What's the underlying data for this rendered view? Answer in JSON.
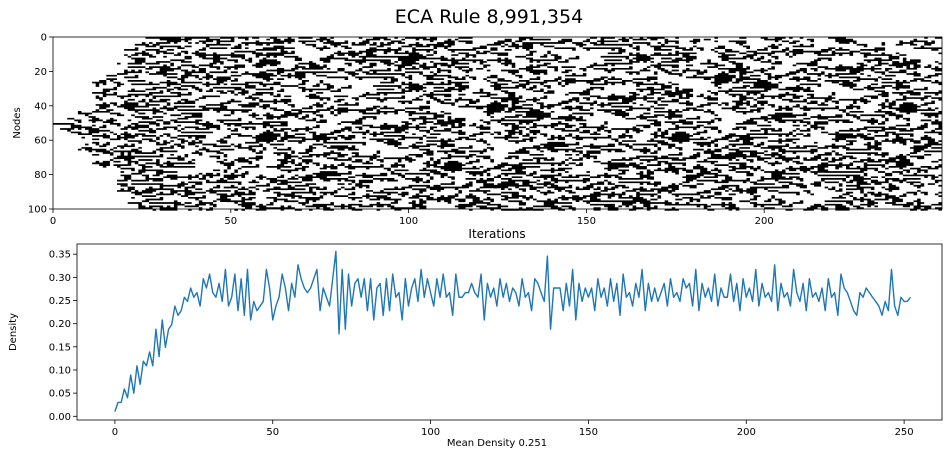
{
  "figure_title": "ECA Rule 8,991,354",
  "chart_data": [
    {
      "type": "heatmap",
      "name": "eca-spacetime-diagram",
      "xlabel": "Iterations",
      "ylabel": "Nodes",
      "xlim": [
        0,
        250
      ],
      "ylim": [
        0,
        100
      ],
      "y_inverted": true,
      "x_ticks": [
        0,
        50,
        100,
        150,
        200
      ],
      "y_ticks": [
        0,
        20,
        40,
        60,
        80,
        100
      ],
      "nodes": 101,
      "iterations": 250,
      "colormap": [
        "#ffffff",
        "#000000"
      ],
      "seed": "single active node at node 50, iteration 0"
    },
    {
      "type": "line",
      "name": "density-over-iterations",
      "xlabel": "Mean Density 0.251",
      "ylabel": "Density",
      "xlim": [
        -12,
        262
      ],
      "ylim": [
        -0.008,
        0.372
      ],
      "x_ticks": [
        0,
        50,
        100,
        150,
        200,
        250
      ],
      "y_ticks": [
        0.0,
        0.05,
        0.1,
        0.15,
        0.2,
        0.25,
        0.3,
        0.35
      ],
      "grid": false,
      "series": [
        {
          "name": "density",
          "color": "#1f77b4",
          "x_start": 0,
          "values": [
            0.01,
            0.03,
            0.03,
            0.059,
            0.04,
            0.089,
            0.05,
            0.109,
            0.069,
            0.119,
            0.109,
            0.139,
            0.109,
            0.188,
            0.129,
            0.208,
            0.149,
            0.188,
            0.198,
            0.238,
            0.218,
            0.228,
            0.257,
            0.248,
            0.277,
            0.257,
            0.267,
            0.238,
            0.297,
            0.277,
            0.307,
            0.267,
            0.257,
            0.287,
            0.248,
            0.317,
            0.238,
            0.257,
            0.307,
            0.228,
            0.297,
            0.218,
            0.317,
            0.208,
            0.248,
            0.228,
            0.238,
            0.248,
            0.317,
            0.277,
            0.208,
            0.238,
            0.257,
            0.307,
            0.277,
            0.228,
            0.287,
            0.257,
            0.327,
            0.297,
            0.277,
            0.267,
            0.277,
            0.297,
            0.317,
            0.228,
            0.277,
            0.257,
            0.238,
            0.297,
            0.356,
            0.178,
            0.317,
            0.188,
            0.307,
            0.238,
            0.287,
            0.297,
            0.257,
            0.297,
            0.228,
            0.297,
            0.208,
            0.277,
            0.287,
            0.218,
            0.297,
            0.228,
            0.307,
            0.257,
            0.267,
            0.208,
            0.297,
            0.238,
            0.277,
            0.297,
            0.248,
            0.317,
            0.257,
            0.297,
            0.267,
            0.238,
            0.297,
            0.257,
            0.307,
            0.257,
            0.267,
            0.218,
            0.307,
            0.257,
            0.257,
            0.267,
            0.267,
            0.287,
            0.267,
            0.257,
            0.307,
            0.208,
            0.287,
            0.257,
            0.277,
            0.238,
            0.297,
            0.257,
            0.287,
            0.248,
            0.277,
            0.267,
            0.238,
            0.297,
            0.257,
            0.267,
            0.228,
            0.297,
            0.287,
            0.267,
            0.248,
            0.346,
            0.188,
            0.277,
            0.277,
            0.277,
            0.228,
            0.287,
            0.238,
            0.317,
            0.208,
            0.287,
            0.248,
            0.277,
            0.257,
            0.277,
            0.228,
            0.297,
            0.257,
            0.277,
            0.238,
            0.297,
            0.248,
            0.287,
            0.218,
            0.307,
            0.257,
            0.267,
            0.238,
            0.287,
            0.257,
            0.317,
            0.228,
            0.287,
            0.248,
            0.277,
            0.248,
            0.267,
            0.287,
            0.238,
            0.297,
            0.257,
            0.267,
            0.248,
            0.297,
            0.277,
            0.287,
            0.238,
            0.317,
            0.228,
            0.287,
            0.257,
            0.277,
            0.248,
            0.307,
            0.238,
            0.277,
            0.257,
            0.257,
            0.307,
            0.248,
            0.287,
            0.228,
            0.297,
            0.257,
            0.277,
            0.248,
            0.317,
            0.238,
            0.287,
            0.257,
            0.267,
            0.248,
            0.327,
            0.228,
            0.287,
            0.257,
            0.267,
            0.238,
            0.317,
            0.267,
            0.248,
            0.287,
            0.228,
            0.297,
            0.257,
            0.267,
            0.248,
            0.277,
            0.228,
            0.297,
            0.257,
            0.267,
            0.218,
            0.307,
            0.277,
            0.267,
            0.248,
            0.228,
            0.218,
            0.267,
            0.257,
            0.277,
            0.267,
            0.257,
            0.248,
            0.238,
            0.218,
            0.248,
            0.228,
            0.317,
            0.238,
            0.218,
            0.257,
            0.248,
            0.248,
            0.257
          ]
        }
      ]
    }
  ]
}
